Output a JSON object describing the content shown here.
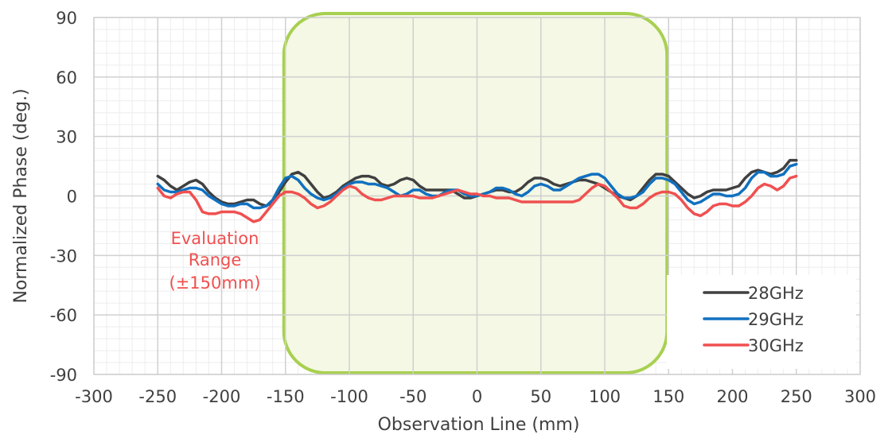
{
  "chart_data": {
    "type": "line",
    "title": "",
    "xlabel": "Observation Line (mm)",
    "ylabel": "Normalized Phase (deg.)",
    "xlim": [
      -300,
      300
    ],
    "ylim": [
      -90,
      90
    ],
    "x_ticks": [
      -300,
      -250,
      -200,
      -150,
      -100,
      -50,
      0,
      50,
      100,
      150,
      200,
      250,
      300
    ],
    "y_ticks": [
      -90,
      -60,
      -30,
      0,
      30,
      60,
      90
    ],
    "x_tick_labels": [
      "-300",
      "-250",
      "-200",
      "-150",
      "-100",
      "-50",
      "0",
      "50",
      "100",
      "150",
      "200",
      "250",
      "300"
    ],
    "y_tick_labels": [
      "-90",
      "-60",
      "-30",
      "0",
      "30",
      "60",
      "90"
    ],
    "grid": true,
    "legend_position": "bottom-right",
    "annotation": {
      "lines": [
        "Evaluation",
        "Range",
        "(±150mm)"
      ],
      "color": "#F05050",
      "highlight_range": [
        -150,
        150
      ],
      "highlight_border": "#A8D050",
      "highlight_fill": "#F4F8E4"
    },
    "series": [
      {
        "name": "28GHz",
        "color": "#404040",
        "points": [
          [
            -250,
            10
          ],
          [
            -245,
            8
          ],
          [
            -240,
            5
          ],
          [
            -235,
            3
          ],
          [
            -230,
            5
          ],
          [
            -225,
            7
          ],
          [
            -220,
            8
          ],
          [
            -215,
            6
          ],
          [
            -210,
            2
          ],
          [
            -205,
            -1
          ],
          [
            -200,
            -3
          ],
          [
            -195,
            -4
          ],
          [
            -190,
            -4
          ],
          [
            -185,
            -3
          ],
          [
            -180,
            -2
          ],
          [
            -175,
            -2
          ],
          [
            -170,
            -4
          ],
          [
            -165,
            -5
          ],
          [
            -160,
            -3
          ],
          [
            -155,
            2
          ],
          [
            -150,
            7
          ],
          [
            -145,
            11
          ],
          [
            -140,
            12
          ],
          [
            -135,
            10
          ],
          [
            -130,
            6
          ],
          [
            -125,
            2
          ],
          [
            -120,
            -1
          ],
          [
            -115,
            0
          ],
          [
            -110,
            2
          ],
          [
            -105,
            5
          ],
          [
            -100,
            7
          ],
          [
            -95,
            9
          ],
          [
            -90,
            10
          ],
          [
            -85,
            10
          ],
          [
            -80,
            9
          ],
          [
            -75,
            6
          ],
          [
            -70,
            5
          ],
          [
            -65,
            6
          ],
          [
            -60,
            8
          ],
          [
            -55,
            9
          ],
          [
            -50,
            8
          ],
          [
            -45,
            5
          ],
          [
            -40,
            3
          ],
          [
            -35,
            3
          ],
          [
            -30,
            3
          ],
          [
            -25,
            3
          ],
          [
            -20,
            3
          ],
          [
            -15,
            1
          ],
          [
            -10,
            -1
          ],
          [
            -5,
            -1
          ],
          [
            0,
            0
          ],
          [
            5,
            1
          ],
          [
            10,
            2
          ],
          [
            15,
            3
          ],
          [
            20,
            3
          ],
          [
            25,
            2
          ],
          [
            30,
            2
          ],
          [
            35,
            4
          ],
          [
            40,
            7
          ],
          [
            45,
            9
          ],
          [
            50,
            9
          ],
          [
            55,
            8
          ],
          [
            60,
            6
          ],
          [
            65,
            5
          ],
          [
            70,
            6
          ],
          [
            75,
            7
          ],
          [
            80,
            8
          ],
          [
            85,
            8
          ],
          [
            90,
            7
          ],
          [
            95,
            6
          ],
          [
            100,
            4
          ],
          [
            105,
            2
          ],
          [
            110,
            0
          ],
          [
            115,
            -1
          ],
          [
            120,
            -2
          ],
          [
            125,
            0
          ],
          [
            130,
            4
          ],
          [
            135,
            8
          ],
          [
            140,
            11
          ],
          [
            145,
            11
          ],
          [
            150,
            10
          ],
          [
            155,
            7
          ],
          [
            160,
            4
          ],
          [
            165,
            1
          ],
          [
            170,
            -1
          ],
          [
            175,
            0
          ],
          [
            180,
            2
          ],
          [
            185,
            3
          ],
          [
            190,
            3
          ],
          [
            195,
            3
          ],
          [
            200,
            4
          ],
          [
            205,
            5
          ],
          [
            210,
            9
          ],
          [
            215,
            12
          ],
          [
            220,
            13
          ],
          [
            225,
            12
          ],
          [
            230,
            11
          ],
          [
            235,
            12
          ],
          [
            240,
            14
          ],
          [
            245,
            18
          ],
          [
            250,
            18
          ]
        ]
      },
      {
        "name": "29GHz",
        "color": "#1070C0",
        "points": [
          [
            -250,
            6
          ],
          [
            -245,
            3
          ],
          [
            -240,
            2
          ],
          [
            -235,
            2
          ],
          [
            -230,
            3
          ],
          [
            -225,
            4
          ],
          [
            -220,
            4
          ],
          [
            -215,
            3
          ],
          [
            -210,
            0
          ],
          [
            -205,
            -2
          ],
          [
            -200,
            -4
          ],
          [
            -195,
            -5
          ],
          [
            -190,
            -5
          ],
          [
            -185,
            -4
          ],
          [
            -180,
            -4
          ],
          [
            -175,
            -6
          ],
          [
            -170,
            -6
          ],
          [
            -165,
            -5
          ],
          [
            -160,
            -2
          ],
          [
            -155,
            4
          ],
          [
            -150,
            9
          ],
          [
            -145,
            10
          ],
          [
            -140,
            8
          ],
          [
            -135,
            4
          ],
          [
            -130,
            1
          ],
          [
            -125,
            -1
          ],
          [
            -120,
            -2
          ],
          [
            -115,
            -1
          ],
          [
            -110,
            1
          ],
          [
            -105,
            4
          ],
          [
            -100,
            6
          ],
          [
            -95,
            7
          ],
          [
            -90,
            7
          ],
          [
            -85,
            6
          ],
          [
            -80,
            6
          ],
          [
            -75,
            5
          ],
          [
            -70,
            4
          ],
          [
            -65,
            2
          ],
          [
            -60,
            0
          ],
          [
            -55,
            1
          ],
          [
            -50,
            3
          ],
          [
            -45,
            3
          ],
          [
            -40,
            1
          ],
          [
            -35,
            0
          ],
          [
            -30,
            0
          ],
          [
            -25,
            2
          ],
          [
            -20,
            3
          ],
          [
            -15,
            3
          ],
          [
            -10,
            1
          ],
          [
            -5,
            0
          ],
          [
            0,
            0
          ],
          [
            5,
            1
          ],
          [
            10,
            2
          ],
          [
            15,
            4
          ],
          [
            20,
            4
          ],
          [
            25,
            3
          ],
          [
            30,
            1
          ],
          [
            35,
            0
          ],
          [
            40,
            2
          ],
          [
            45,
            5
          ],
          [
            50,
            6
          ],
          [
            55,
            5
          ],
          [
            60,
            3
          ],
          [
            65,
            3
          ],
          [
            70,
            5
          ],
          [
            75,
            7
          ],
          [
            80,
            9
          ],
          [
            85,
            10
          ],
          [
            90,
            11
          ],
          [
            95,
            11
          ],
          [
            100,
            9
          ],
          [
            105,
            5
          ],
          [
            110,
            1
          ],
          [
            115,
            -1
          ],
          [
            120,
            -1
          ],
          [
            125,
            0
          ],
          [
            130,
            2
          ],
          [
            135,
            6
          ],
          [
            140,
            9
          ],
          [
            145,
            9
          ],
          [
            150,
            8
          ],
          [
            155,
            6
          ],
          [
            160,
            2
          ],
          [
            165,
            -2
          ],
          [
            170,
            -4
          ],
          [
            175,
            -3
          ],
          [
            180,
            -1
          ],
          [
            185,
            1
          ],
          [
            190,
            1
          ],
          [
            195,
            0
          ],
          [
            200,
            0
          ],
          [
            205,
            1
          ],
          [
            210,
            4
          ],
          [
            215,
            9
          ],
          [
            220,
            12
          ],
          [
            225,
            12
          ],
          [
            230,
            10
          ],
          [
            235,
            10
          ],
          [
            240,
            11
          ],
          [
            245,
            15
          ],
          [
            250,
            16
          ]
        ]
      },
      {
        "name": "30GHz",
        "color": "#F05050",
        "points": [
          [
            -250,
            4
          ],
          [
            -245,
            0
          ],
          [
            -240,
            -1
          ],
          [
            -235,
            1
          ],
          [
            -230,
            2
          ],
          [
            -225,
            2
          ],
          [
            -220,
            -2
          ],
          [
            -215,
            -8
          ],
          [
            -210,
            -9
          ],
          [
            -205,
            -9
          ],
          [
            -200,
            -8
          ],
          [
            -195,
            -8
          ],
          [
            -190,
            -8
          ],
          [
            -185,
            -9
          ],
          [
            -180,
            -11
          ],
          [
            -175,
            -13
          ],
          [
            -170,
            -12
          ],
          [
            -165,
            -8
          ],
          [
            -160,
            -4
          ],
          [
            -155,
            0
          ],
          [
            -150,
            2
          ],
          [
            -145,
            2
          ],
          [
            -140,
            1
          ],
          [
            -135,
            -1
          ],
          [
            -130,
            -4
          ],
          [
            -125,
            -6
          ],
          [
            -120,
            -5
          ],
          [
            -115,
            -3
          ],
          [
            -110,
            0
          ],
          [
            -105,
            3
          ],
          [
            -100,
            5
          ],
          [
            -95,
            4
          ],
          [
            -90,
            1
          ],
          [
            -85,
            -1
          ],
          [
            -80,
            -2
          ],
          [
            -75,
            -2
          ],
          [
            -70,
            -1
          ],
          [
            -65,
            0
          ],
          [
            -60,
            0
          ],
          [
            -55,
            0
          ],
          [
            -50,
            0
          ],
          [
            -45,
            -1
          ],
          [
            -40,
            -1
          ],
          [
            -35,
            -1
          ],
          [
            -30,
            0
          ],
          [
            -25,
            1
          ],
          [
            -20,
            2
          ],
          [
            -15,
            3
          ],
          [
            -10,
            2
          ],
          [
            -5,
            1
          ],
          [
            0,
            1
          ],
          [
            5,
            0
          ],
          [
            10,
            0
          ],
          [
            15,
            -1
          ],
          [
            20,
            -1
          ],
          [
            25,
            -1
          ],
          [
            30,
            -2
          ],
          [
            35,
            -3
          ],
          [
            40,
            -3
          ],
          [
            45,
            -3
          ],
          [
            50,
            -3
          ],
          [
            55,
            -3
          ],
          [
            60,
            -3
          ],
          [
            65,
            -3
          ],
          [
            70,
            -3
          ],
          [
            75,
            -3
          ],
          [
            80,
            -2
          ],
          [
            85,
            1
          ],
          [
            90,
            4
          ],
          [
            95,
            6
          ],
          [
            100,
            5
          ],
          [
            105,
            2
          ],
          [
            110,
            -1
          ],
          [
            115,
            -5
          ],
          [
            120,
            -6
          ],
          [
            125,
            -6
          ],
          [
            130,
            -4
          ],
          [
            135,
            -1
          ],
          [
            140,
            1
          ],
          [
            145,
            2
          ],
          [
            150,
            2
          ],
          [
            155,
            1
          ],
          [
            160,
            -2
          ],
          [
            165,
            -6
          ],
          [
            170,
            -9
          ],
          [
            175,
            -10
          ],
          [
            180,
            -8
          ],
          [
            185,
            -5
          ],
          [
            190,
            -4
          ],
          [
            195,
            -4
          ],
          [
            200,
            -5
          ],
          [
            205,
            -5
          ],
          [
            210,
            -3
          ],
          [
            215,
            0
          ],
          [
            220,
            4
          ],
          [
            225,
            6
          ],
          [
            230,
            5
          ],
          [
            235,
            3
          ],
          [
            240,
            5
          ],
          [
            245,
            9
          ],
          [
            250,
            10
          ]
        ]
      }
    ]
  }
}
